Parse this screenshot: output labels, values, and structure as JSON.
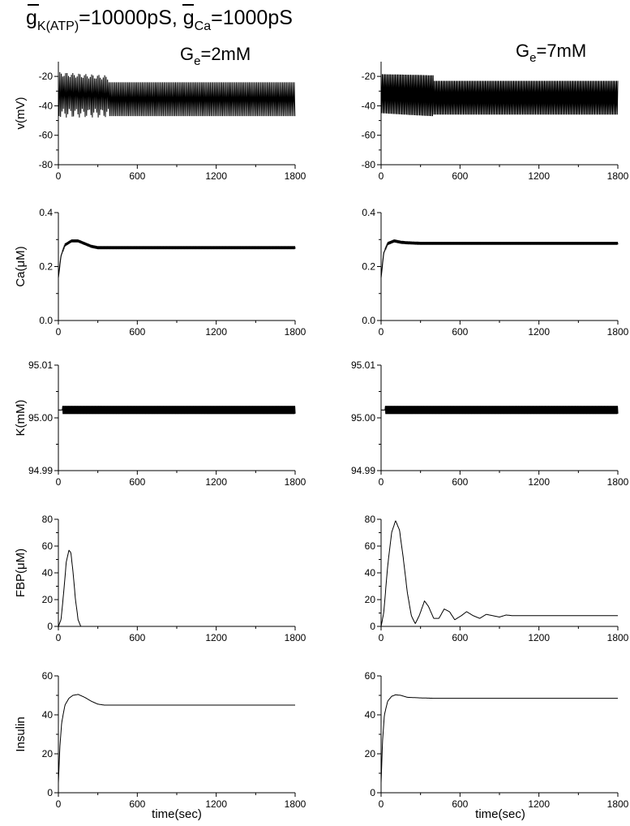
{
  "header": {
    "g1": "g",
    "g1_sub": "K(ATP)",
    "g1_val": "=10000pS, ",
    "g2": "g",
    "g2_sub": "Ca",
    "g2_val": "=1000pS"
  },
  "columns": [
    {
      "G": "G",
      "sub": "e",
      "val": "=2mM"
    },
    {
      "G": "G",
      "sub": "e",
      "val": "=7mM"
    }
  ],
  "xlabel": "time(sec)",
  "chart_data": [
    {
      "type": "line",
      "panel": "v",
      "column": 0,
      "ylabel": "v(mV)",
      "xlim": [
        0,
        1800
      ],
      "ylim": [
        -80,
        -10
      ],
      "xticks": [
        0,
        600,
        1200,
        1800
      ],
      "yticks": [
        -80,
        -60,
        -40,
        -20
      ],
      "ytick_labels": [
        "-80",
        "-60",
        "-40",
        "-20"
      ],
      "oscillation": {
        "x_start": 0,
        "x_end": 1800,
        "low": -47,
        "high": -24,
        "period_sec": 11,
        "initial_transient": {
          "until": 380,
          "low": -48,
          "high": -20
        }
      }
    },
    {
      "type": "line",
      "panel": "v",
      "column": 1,
      "ylabel": "",
      "xlim": [
        0,
        1800
      ],
      "ylim": [
        -80,
        -10
      ],
      "xticks": [
        0,
        600,
        1200,
        1800
      ],
      "yticks": [
        -80,
        -60,
        -40,
        -20
      ],
      "ytick_labels": [
        "-80",
        "-60",
        "-40",
        "-20"
      ],
      "oscillation": {
        "x_start": 0,
        "x_end": 1800,
        "low": -46,
        "high": -23,
        "period_sec": 9,
        "initial_transient": {
          "until": 400,
          "low": -48,
          "high": -20
        }
      }
    },
    {
      "type": "line",
      "panel": "Ca",
      "column": 0,
      "ylabel": "Ca(μM)",
      "xlim": [
        0,
        1800
      ],
      "ylim": [
        0.0,
        0.4
      ],
      "xticks": [
        0,
        600,
        1200,
        1800
      ],
      "yticks": [
        0.0,
        0.2,
        0.4
      ],
      "ytick_labels": [
        "0.0",
        "0.2",
        "0.4"
      ],
      "x": [
        0,
        20,
        50,
        100,
        150,
        200,
        250,
        300,
        350,
        400,
        1800
      ],
      "y": [
        0.16,
        0.24,
        0.28,
        0.295,
        0.295,
        0.285,
        0.275,
        0.27,
        0.27,
        0.27,
        0.27
      ],
      "ripple": 0.004
    },
    {
      "type": "line",
      "panel": "Ca",
      "column": 1,
      "ylabel": "",
      "xlim": [
        0,
        1800
      ],
      "ylim": [
        0.0,
        0.4
      ],
      "xticks": [
        0,
        600,
        1200,
        1800
      ],
      "yticks": [
        0.0,
        0.2,
        0.4
      ],
      "ytick_labels": [
        "0.0",
        "0.2",
        "0.4"
      ],
      "x": [
        0,
        20,
        50,
        100,
        150,
        200,
        300,
        1800
      ],
      "y": [
        0.16,
        0.25,
        0.285,
        0.295,
        0.29,
        0.288,
        0.286,
        0.286
      ],
      "ripple": 0.004
    },
    {
      "type": "line",
      "panel": "K",
      "column": 0,
      "ylabel": "K(mM)",
      "xlim": [
        0,
        1800
      ],
      "ylim": [
        94.99,
        95.01
      ],
      "xticks": [
        0,
        600,
        1200,
        1800
      ],
      "yticks": [
        94.99,
        95.0,
        95.01
      ],
      "ytick_labels": [
        "94.99",
        "95.00",
        "95.01"
      ],
      "x": [
        0,
        1800
      ],
      "y": [
        95.0015,
        95.0015
      ],
      "ripple": 0.0007
    },
    {
      "type": "line",
      "panel": "K",
      "column": 1,
      "ylabel": "",
      "xlim": [
        0,
        1800
      ],
      "ylim": [
        94.99,
        95.01
      ],
      "xticks": [
        0,
        600,
        1200,
        1800
      ],
      "yticks": [
        94.99,
        95.0,
        95.01
      ],
      "ytick_labels": [
        "94.99",
        "95.00",
        "95.01"
      ],
      "x": [
        0,
        1800
      ],
      "y": [
        95.0015,
        95.0015
      ],
      "ripple": 0.0007
    },
    {
      "type": "line",
      "panel": "FBP",
      "column": 0,
      "ylabel": "FBP(μM)",
      "xlim": [
        0,
        1800
      ],
      "ylim": [
        0,
        80
      ],
      "xticks": [
        0,
        600,
        1200,
        1800
      ],
      "yticks": [
        0,
        20,
        40,
        60,
        80
      ],
      "ytick_labels": [
        "0",
        "20",
        "40",
        "60",
        "80"
      ],
      "x": [
        0,
        20,
        40,
        60,
        80,
        95,
        110,
        130,
        150,
        170,
        1800
      ],
      "y": [
        0,
        5,
        25,
        48,
        57,
        55,
        42,
        20,
        5,
        0,
        0
      ]
    },
    {
      "type": "line",
      "panel": "FBP",
      "column": 1,
      "ylabel": "",
      "xlim": [
        0,
        1800
      ],
      "ylim": [
        0,
        80
      ],
      "xticks": [
        0,
        600,
        1200,
        1800
      ],
      "yticks": [
        0,
        20,
        40,
        60,
        80
      ],
      "ytick_labels": [
        "0",
        "20",
        "40",
        "60",
        "80"
      ],
      "x": [
        0,
        20,
        50,
        80,
        110,
        140,
        170,
        200,
        230,
        260,
        290,
        330,
        360,
        400,
        440,
        480,
        520,
        560,
        610,
        650,
        700,
        750,
        800,
        850,
        900,
        950,
        1000,
        1100,
        1200,
        1300,
        1800
      ],
      "y": [
        0,
        10,
        45,
        70,
        79,
        72,
        50,
        25,
        8,
        2,
        8,
        19,
        15,
        6,
        6,
        13,
        11,
        5,
        8,
        11,
        8,
        6,
        9,
        8,
        7,
        8.5,
        8,
        8,
        8,
        8,
        8
      ]
    },
    {
      "type": "line",
      "panel": "Insulin",
      "column": 0,
      "ylabel": "Insulin",
      "xlim": [
        0,
        1800
      ],
      "ylim": [
        0,
        60
      ],
      "xticks": [
        0,
        600,
        1200,
        1800
      ],
      "yticks": [
        0,
        20,
        40,
        60
      ],
      "ytick_labels": [
        "0",
        "20",
        "40",
        "60"
      ],
      "x": [
        0,
        10,
        25,
        50,
        80,
        110,
        150,
        200,
        250,
        300,
        350,
        400,
        1800
      ],
      "y": [
        5,
        22,
        36,
        45,
        48.5,
        50,
        50.5,
        49,
        47,
        45.5,
        45,
        45,
        45
      ]
    },
    {
      "type": "line",
      "panel": "Insulin",
      "column": 1,
      "ylabel": "",
      "xlim": [
        0,
        1800
      ],
      "ylim": [
        0,
        60
      ],
      "xticks": [
        0,
        600,
        1200,
        1800
      ],
      "yticks": [
        0,
        20,
        40,
        60
      ],
      "ytick_labels": [
        "0",
        "20",
        "40",
        "60"
      ],
      "x": [
        0,
        10,
        25,
        50,
        80,
        110,
        150,
        200,
        300,
        400,
        500,
        1800
      ],
      "y": [
        5,
        25,
        40,
        47,
        49.5,
        50.3,
        50,
        49,
        48.7,
        48.5,
        48.5,
        48.5
      ]
    }
  ]
}
